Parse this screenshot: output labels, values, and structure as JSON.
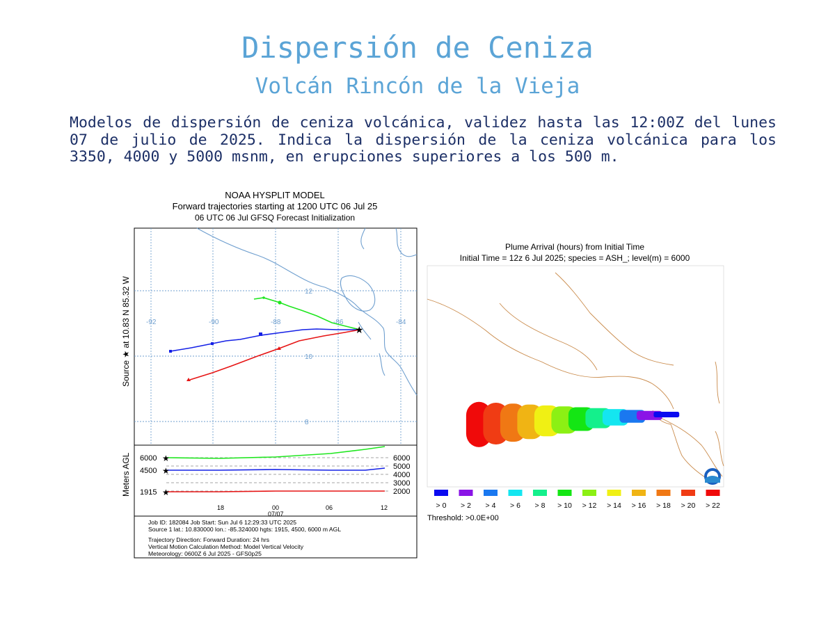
{
  "page": {
    "title": "Dispersión de Ceniza",
    "subtitle": "Volcán Rincón de la Vieja",
    "description": "Modelos de dispersión de ceniza volcánica, validez hasta las 12:00Z del lunes 07 de julio de 2025. Indica la dispersión de la ceniza volcánica para los 3350, 4000 y 5000 msnm, en erupciones superiores a los 500 m."
  },
  "trajectory_panel": {
    "header": [
      "NOAA HYSPLIT MODEL",
      "Forward trajectories starting at 1200 UTC 06 Jul 25",
      "06 UTC 06 Jul    GFSQ  Forecast Initialization"
    ],
    "source_label": "Source ★ at   10.83 N   85.32 W",
    "lon_ticks": [
      "-92",
      "-90",
      "-88",
      "-86",
      "-84"
    ],
    "lat_ticks": [
      "12",
      "10",
      "8"
    ],
    "agl_axis_label": "Meters AGL",
    "agl_left": [
      "6000",
      "4500",
      "1915"
    ],
    "agl_right": [
      "6000",
      "5000",
      "4000",
      "3000",
      "2000"
    ],
    "time_ticks": [
      "18",
      "00",
      "06",
      "12"
    ],
    "date_label": "07/07",
    "info_lines": [
      "Job ID: 182084                    Job Start: Sun Jul  6 12:29:33 UTC 2025",
      "Source 1 lat.: 10.830000  lon.: -85.324000  hgts: 1915, 4500, 6000 m AGL",
      "Trajectory Direction: Forward       Duration: 24 hrs",
      "Vertical Motion Calculation Method:      Model Vertical Velocity",
      "Meteorology: 0600Z 6 Jul 2025 - GFS0p25"
    ],
    "colors": {
      "green": "#1ee61e",
      "blue": "#1420e6",
      "red": "#e61414",
      "map": "#6f9fcf"
    }
  },
  "plume_panel": {
    "title_lines": [
      "Plume Arrival (hours) from Initial Time",
      "Initial Time = 12z  6 Jul 2025;  species = ASH_;  level(m) =  6000"
    ],
    "legend": [
      {
        "label": "> 0",
        "color": "#0a0af0"
      },
      {
        "label": "> 2",
        "color": "#8a14e6"
      },
      {
        "label": "> 4",
        "color": "#1a78f0"
      },
      {
        "label": "> 6",
        "color": "#14e6f0"
      },
      {
        "label": "> 8",
        "color": "#14f08c"
      },
      {
        "label": "> 10",
        "color": "#14e614"
      },
      {
        "label": "> 12",
        "color": "#8cf014"
      },
      {
        "label": "> 14",
        "color": "#f0f014"
      },
      {
        "label": "> 16",
        "color": "#f0b414"
      },
      {
        "label": "> 18",
        "color": "#f07814"
      },
      {
        "label": "> 20",
        "color": "#f03c14"
      },
      {
        "label": "> 22",
        "color": "#f00a0a"
      }
    ],
    "threshold": "Threshold: >0.0E+00",
    "logo_text": "NOAA"
  }
}
